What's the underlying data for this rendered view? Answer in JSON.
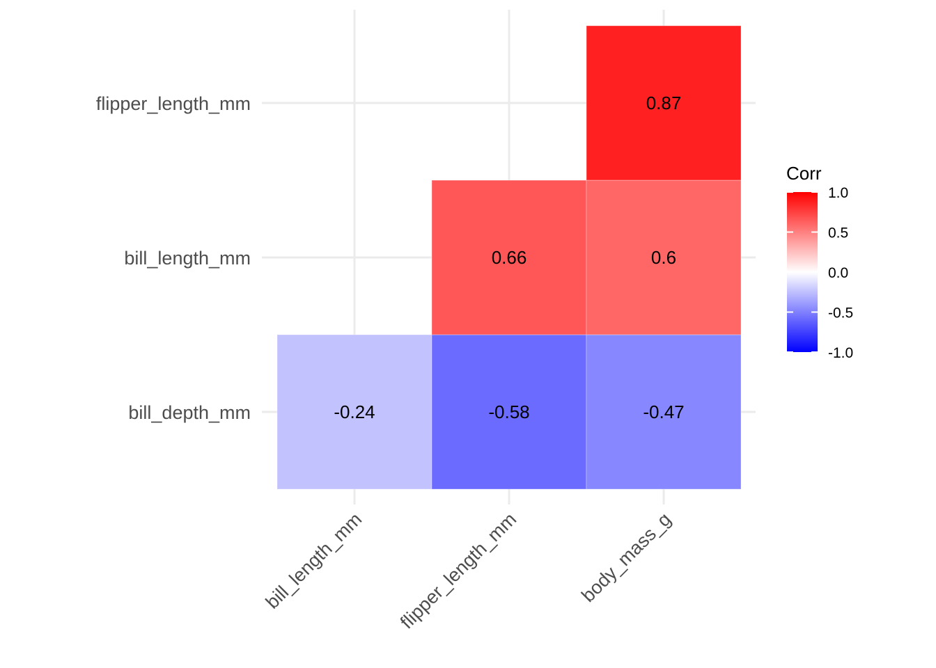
{
  "chart_data": {
    "type": "heatmap",
    "x_categories": [
      "bill_length_mm",
      "flipper_length_mm",
      "body_mass_g"
    ],
    "y_categories": [
      "bill_depth_mm",
      "bill_length_mm",
      "flipper_length_mm"
    ],
    "cells": [
      {
        "x": "bill_length_mm",
        "y": "bill_depth_mm",
        "value": -0.24,
        "label": "-0.24"
      },
      {
        "x": "flipper_length_mm",
        "y": "bill_depth_mm",
        "value": -0.58,
        "label": "-0.58"
      },
      {
        "x": "body_mass_g",
        "y": "bill_depth_mm",
        "value": -0.47,
        "label": "-0.47"
      },
      {
        "x": "flipper_length_mm",
        "y": "bill_length_mm",
        "value": 0.66,
        "label": "0.66"
      },
      {
        "x": "body_mass_g",
        "y": "bill_length_mm",
        "value": 0.6,
        "label": "0.6"
      },
      {
        "x": "body_mass_g",
        "y": "flipper_length_mm",
        "value": 0.87,
        "label": "0.87"
      }
    ],
    "legend": {
      "title": "Corr",
      "range": [
        -1,
        1
      ],
      "ticks": [
        1.0,
        0.5,
        0.0,
        -0.5,
        -1.0
      ],
      "tick_labels": [
        "1.0",
        "0.5",
        "0.0",
        "-0.5",
        "-1.0"
      ],
      "placement": "right"
    },
    "colors": {
      "low": "#0000ff",
      "mid": "#ffffff",
      "high": "#ff0000"
    },
    "grid": true,
    "x_tick_rotation": "45"
  }
}
